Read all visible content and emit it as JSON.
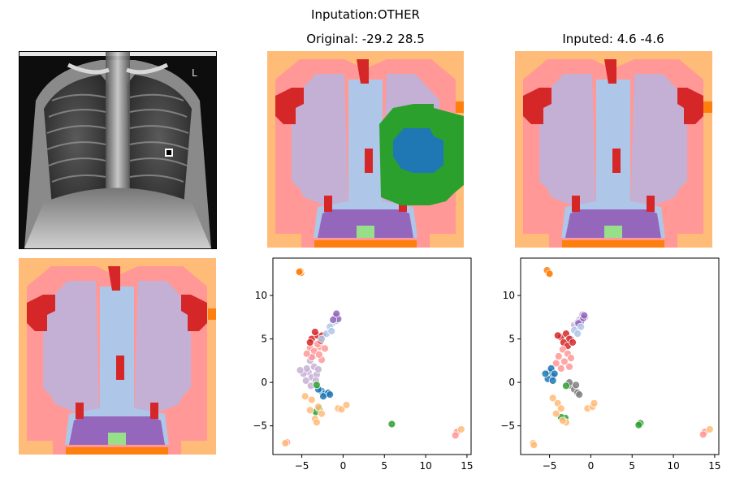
{
  "figure": {
    "suptitle": "Inputation:OTHER"
  },
  "panels": {
    "xray": {
      "title": ""
    },
    "original": {
      "title": "Original: -29.2 28.5"
    },
    "inputed": {
      "title": "Inputed: 4.6 -4.6"
    },
    "segmentation_plain": {
      "title": ""
    }
  },
  "palette": {
    "background": "#ffbb78",
    "body": "#ff9896",
    "lung": "#c5b0d5",
    "mediastinum": "#aec7e8",
    "heart_base": "#9467bd",
    "red": "#d62728",
    "orange": "#ff7f0e",
    "green": "#2ca02c",
    "blue": "#1f77b4",
    "light_green": "#98df8a",
    "gray": "#7f7f7f"
  },
  "chart_data": [
    {
      "type": "scatter",
      "name": "original_embedding",
      "title": "",
      "xlim": [
        -8.5,
        15.5
      ],
      "ylim": [
        -8.3,
        14.3
      ],
      "xticks": [
        -5,
        0,
        5,
        10,
        15
      ],
      "yticks": [
        -5,
        0,
        5,
        10
      ],
      "xtick_labels": [
        "−5",
        "0",
        "5",
        "10",
        "15"
      ],
      "ytick_labels": [
        "−5",
        "0",
        "5",
        "10"
      ],
      "clusters": [
        {
          "color": "#ff7f0e",
          "points": [
            [
              -5.1,
              12.6
            ],
            [
              -5.2,
              12.8
            ],
            [
              -5.3,
              12.7
            ]
          ]
        },
        {
          "color": "#c5b0d5",
          "points": [
            [
              -4.2,
              1.2
            ],
            [
              -3.8,
              0.6
            ],
            [
              -3.5,
              1.8
            ],
            [
              -4.5,
              0.2
            ],
            [
              -3.2,
              0.9
            ],
            [
              -4.0,
              2.5
            ],
            [
              -3.6,
              3.0
            ],
            [
              -4.8,
              1.0
            ],
            [
              -3.9,
              -0.4
            ],
            [
              -3.3,
              0.2
            ],
            [
              -4.4,
              1.6
            ],
            [
              -3.0,
              1.5
            ],
            [
              -5.2,
              1.4
            ]
          ]
        },
        {
          "color": "#ff9896",
          "points": [
            [
              -4.0,
              4.0
            ],
            [
              -3.5,
              3.6
            ],
            [
              -2.8,
              4.1
            ],
            [
              -3.8,
              2.9
            ],
            [
              -2.6,
              2.6
            ],
            [
              -4.4,
              3.3
            ],
            [
              -2.9,
              3.2
            ],
            [
              -3.1,
              4.4
            ],
            [
              -2.2,
              3.9
            ],
            [
              13.8,
              -5.7
            ],
            [
              13.6,
              -6.1
            ],
            [
              -6.8,
              -6.9
            ]
          ]
        },
        {
          "color": "#d62728",
          "points": [
            [
              -3.8,
              5.0
            ],
            [
              -3.1,
              5.4
            ],
            [
              -2.7,
              4.8
            ],
            [
              -3.4,
              5.8
            ],
            [
              -2.5,
              5.4
            ],
            [
              -4.0,
              4.6
            ]
          ]
        },
        {
          "color": "#aec7e8",
          "points": [
            [
              -1.2,
              6.9
            ],
            [
              -1.6,
              6.4
            ],
            [
              -0.8,
              7.1
            ],
            [
              -2.0,
              5.6
            ],
            [
              -1.4,
              5.9
            ],
            [
              -2.6,
              5.0
            ]
          ]
        },
        {
          "color": "#9467bd",
          "points": [
            [
              -0.9,
              7.6
            ],
            [
              -0.6,
              7.3
            ],
            [
              -1.2,
              7.2
            ],
            [
              -0.8,
              7.9
            ]
          ]
        },
        {
          "color": "#1f77b4",
          "points": [
            [
              -2.6,
              -1.0
            ],
            [
              -2.2,
              -1.3
            ],
            [
              -1.8,
              -1.2
            ],
            [
              -3.0,
              -0.8
            ],
            [
              -2.4,
              -1.6
            ],
            [
              -1.6,
              -1.4
            ]
          ]
        },
        {
          "color": "#2ca02c",
          "points": [
            [
              -3.2,
              -0.3
            ],
            [
              -3.3,
              -3.4
            ],
            [
              5.9,
              -4.8
            ],
            [
              -2.9,
              -3.0
            ]
          ]
        },
        {
          "color": "#ffbb78",
          "points": [
            [
              -3.8,
              -2.0
            ],
            [
              -3.0,
              -2.8
            ],
            [
              -4.0,
              -3.2
            ],
            [
              -2.6,
              -3.6
            ],
            [
              -3.4,
              -4.2
            ],
            [
              -3.2,
              -4.6
            ],
            [
              -0.6,
              -3.0
            ],
            [
              -0.2,
              -3.1
            ],
            [
              0.4,
              -2.6
            ],
            [
              14.3,
              -5.4
            ],
            [
              -7.0,
              -7.0
            ],
            [
              -4.6,
              -1.6
            ]
          ]
        }
      ]
    },
    {
      "type": "scatter",
      "name": "inputed_embedding",
      "title": "",
      "xlim": [
        -8.5,
        15.5
      ],
      "ylim": [
        -8.3,
        14.3
      ],
      "xticks": [
        -5,
        0,
        5,
        10,
        15
      ],
      "yticks": [
        -5,
        0,
        5,
        10
      ],
      "xtick_labels": [
        "−5",
        "0",
        "5",
        "10",
        "15"
      ],
      "ytick_labels": [
        "−5",
        "0",
        "5",
        "10"
      ],
      "clusters": [
        {
          "color": "#ff7f0e",
          "points": [
            [
              -5.1,
              12.6
            ],
            [
              -5.3,
              12.9
            ],
            [
              -5.0,
              12.5
            ]
          ]
        },
        {
          "color": "#c5b0d5",
          "points": [
            [
              -1.0,
              7.8
            ],
            [
              -1.4,
              7.2
            ],
            [
              -0.7,
              7.5
            ],
            [
              -2.0,
              6.6
            ],
            [
              -1.6,
              6.9
            ]
          ]
        },
        {
          "color": "#9467bd",
          "points": [
            [
              -1.2,
              7.0
            ],
            [
              -0.9,
              7.4
            ],
            [
              -1.5,
              6.8
            ],
            [
              -0.8,
              7.7
            ]
          ]
        },
        {
          "color": "#aec7e8",
          "points": [
            [
              -2.0,
              6.0
            ],
            [
              -1.6,
              5.6
            ],
            [
              -2.4,
              5.0
            ],
            [
              -1.2,
              6.4
            ]
          ]
        },
        {
          "color": "#d62728",
          "points": [
            [
              -3.6,
              5.2
            ],
            [
              -3.0,
              5.6
            ],
            [
              -2.6,
              5.0
            ],
            [
              -3.3,
              4.6
            ],
            [
              -2.8,
              4.2
            ],
            [
              -4.0,
              5.4
            ],
            [
              -2.2,
              4.6
            ]
          ]
        },
        {
          "color": "#ff9896",
          "points": [
            [
              -3.4,
              3.8
            ],
            [
              -2.8,
              3.3
            ],
            [
              -3.9,
              3.0
            ],
            [
              -2.4,
              2.8
            ],
            [
              -3.2,
              2.4
            ],
            [
              -3.6,
              1.6
            ],
            [
              -2.6,
              1.8
            ],
            [
              -4.2,
              2.2
            ],
            [
              13.8,
              -5.7
            ],
            [
              13.6,
              -6.0
            ]
          ]
        },
        {
          "color": "#1f77b4",
          "points": [
            [
              -5.0,
              1.2
            ],
            [
              -4.6,
              0.7
            ],
            [
              -5.2,
              0.4
            ],
            [
              -4.8,
              1.6
            ],
            [
              -4.4,
              1.0
            ],
            [
              -5.5,
              1.0
            ],
            [
              -4.6,
              0.2
            ]
          ]
        },
        {
          "color": "#7f7f7f",
          "points": [
            [
              -2.4,
              -0.4
            ],
            [
              -2.0,
              -0.8
            ],
            [
              -1.6,
              -1.2
            ],
            [
              -2.6,
              0.0
            ],
            [
              -1.8,
              -0.3
            ],
            [
              -1.4,
              -1.4
            ]
          ]
        },
        {
          "color": "#2ca02c",
          "points": [
            [
              -3.0,
              -0.4
            ],
            [
              -3.1,
              -4.1
            ],
            [
              6.0,
              -4.7
            ],
            [
              5.8,
              -4.9
            ],
            [
              -3.6,
              -4.0
            ]
          ]
        },
        {
          "color": "#ffbb78",
          "points": [
            [
              -4.6,
              -1.8
            ],
            [
              -4.0,
              -2.4
            ],
            [
              -3.6,
              -3.0
            ],
            [
              -4.2,
              -3.6
            ],
            [
              -3.0,
              -4.6
            ],
            [
              -3.4,
              -4.4
            ],
            [
              -0.4,
              -3.0
            ],
            [
              0.2,
              -2.8
            ],
            [
              0.4,
              -2.4
            ],
            [
              14.4,
              -5.4
            ],
            [
              -7.0,
              -7.0
            ],
            [
              -6.9,
              -7.2
            ]
          ]
        }
      ]
    }
  ]
}
